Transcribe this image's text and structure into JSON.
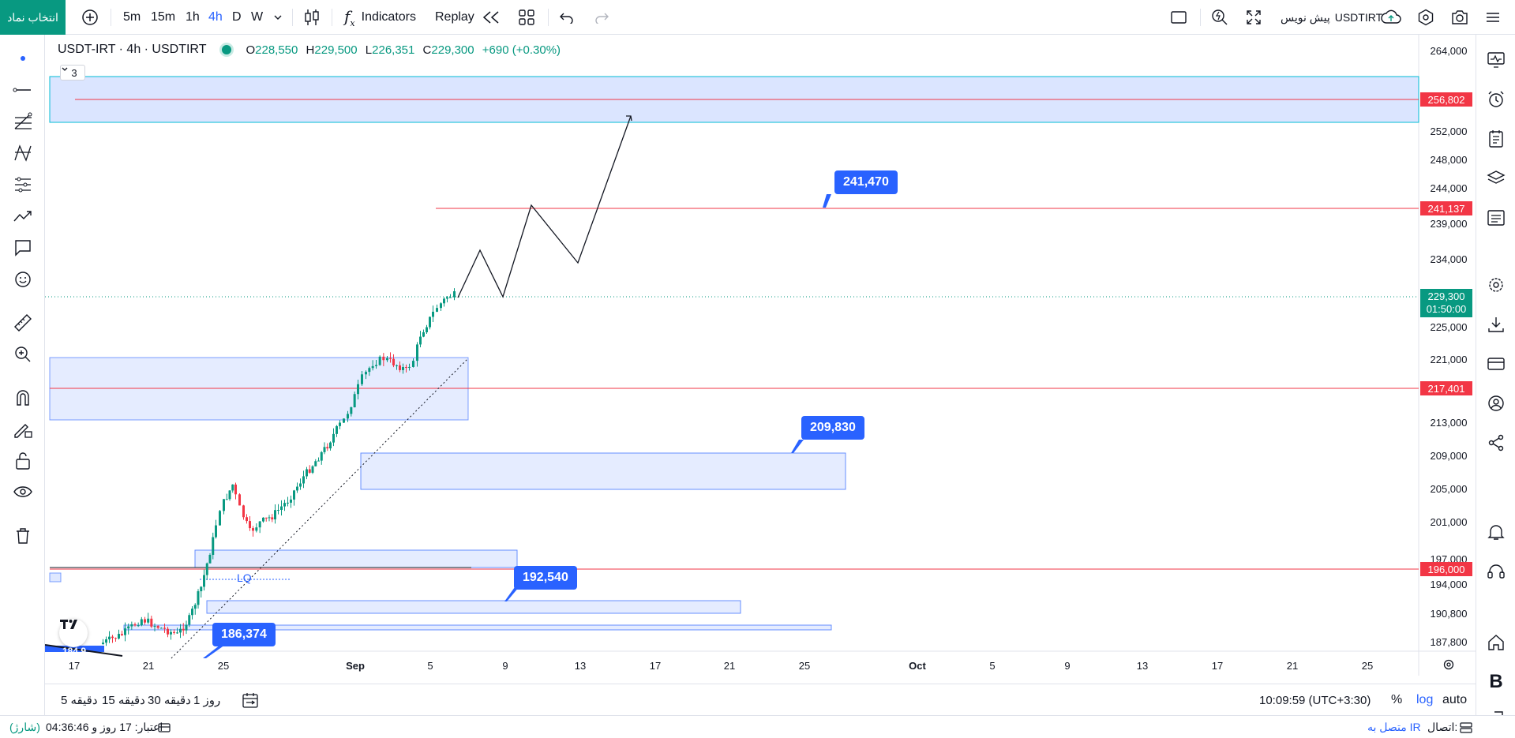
{
  "toolbar": {
    "symbol_select_label": "انتخاب نماد",
    "timeframes": [
      "5m",
      "15m",
      "1h",
      "4h",
      "D",
      "W"
    ],
    "active_timeframe": "4h",
    "indicators_label": "Indicators",
    "replay_label": "Replay",
    "symbol_name": "USDTIRT",
    "symbol_provider": "پیش نویس"
  },
  "legend": {
    "title": "USDT-IRT · 4h · USDTIRT",
    "open_label": "O",
    "open": "228,550",
    "high_label": "H",
    "high": "229,500",
    "low_label": "L",
    "low": "226,351",
    "close_label": "C",
    "close": "229,300",
    "change": "+690 (+0.30%)",
    "indicator_count": "3"
  },
  "chart_data": {
    "type": "candlestick",
    "y_ticks": [
      "264,000",
      "252,000",
      "248,000",
      "244,000",
      "239,000",
      "234,000",
      "225,000",
      "221,000",
      "213,000",
      "209,000",
      "205,000",
      "201,000",
      "197,000",
      "194,000",
      "190,800",
      "187,800"
    ],
    "x_ticks": [
      "17",
      "21",
      "25",
      "Sep",
      "5",
      "9",
      "13",
      "17",
      "21",
      "25",
      "Oct",
      "5",
      "9",
      "13",
      "17",
      "21",
      "25"
    ],
    "last_price": "229,300",
    "countdown": "01:50:00",
    "horizontal_levels": [
      "256,802",
      "241,137",
      "217,401",
      "196,000"
    ],
    "callouts": [
      "241,470",
      "209,830",
      "192,540",
      "186,374"
    ],
    "zone_label": "LQ",
    "cut_label": "184,9..",
    "colors": {
      "up": "#089981",
      "down": "#f23645",
      "level": "#f23645",
      "zone": "#2962ff",
      "callout": "#2962ff"
    }
  },
  "timebar": {
    "ranges": [
      "5 دقیقه",
      "15 دقیقه",
      "30 دقیقه",
      "1 روز"
    ],
    "clock": "10:09:59 (UTC+3:30)",
    "percent_label": "%",
    "log_label": "log",
    "auto_label": "auto"
  },
  "statusbar": {
    "account": "اعتبار: 17 روز و 04:36:46",
    "account_tag": "(شارژ)",
    "connection_label": "اتصال:",
    "connection_value": "متصل به IR"
  }
}
